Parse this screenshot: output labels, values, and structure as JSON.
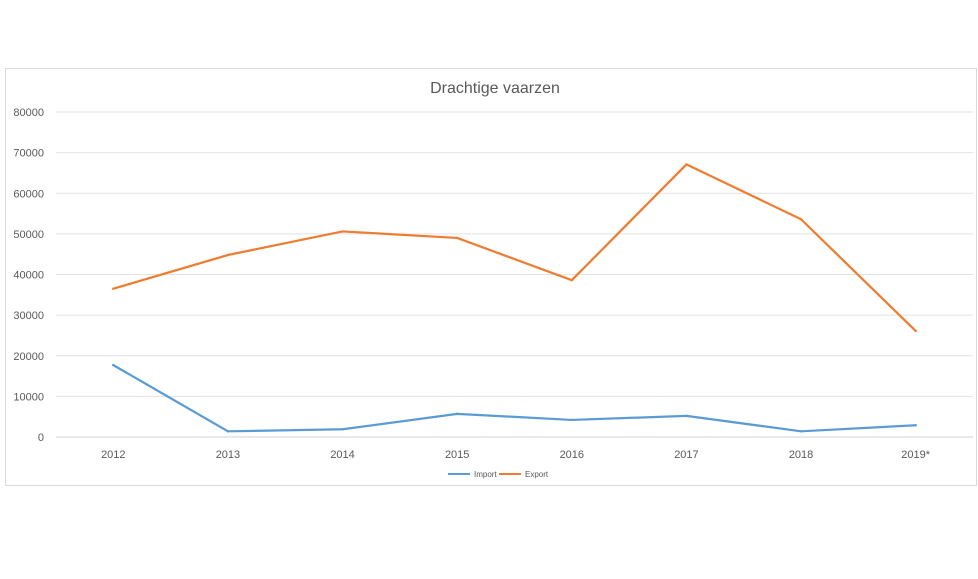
{
  "chart_data": {
    "type": "line",
    "title": "Drachtige vaarzen",
    "categories": [
      "2012",
      "2013",
      "2014",
      "2015",
      "2016",
      "2017",
      "2018",
      "2019*"
    ],
    "series": [
      {
        "name": "Import",
        "color": "#5b9bd5",
        "values": [
          17700,
          1400,
          1900,
          5700,
          4200,
          5200,
          1400,
          2900
        ]
      },
      {
        "name": "Export",
        "color": "#ed7d31",
        "values": [
          36500,
          44800,
          50600,
          49000,
          38600,
          67100,
          53600,
          26100
        ]
      }
    ],
    "ylim": [
      0,
      80000
    ],
    "yticks": [
      0,
      10000,
      20000,
      30000,
      40000,
      50000,
      60000,
      70000,
      80000
    ],
    "grid": true,
    "legend": "bottom"
  }
}
